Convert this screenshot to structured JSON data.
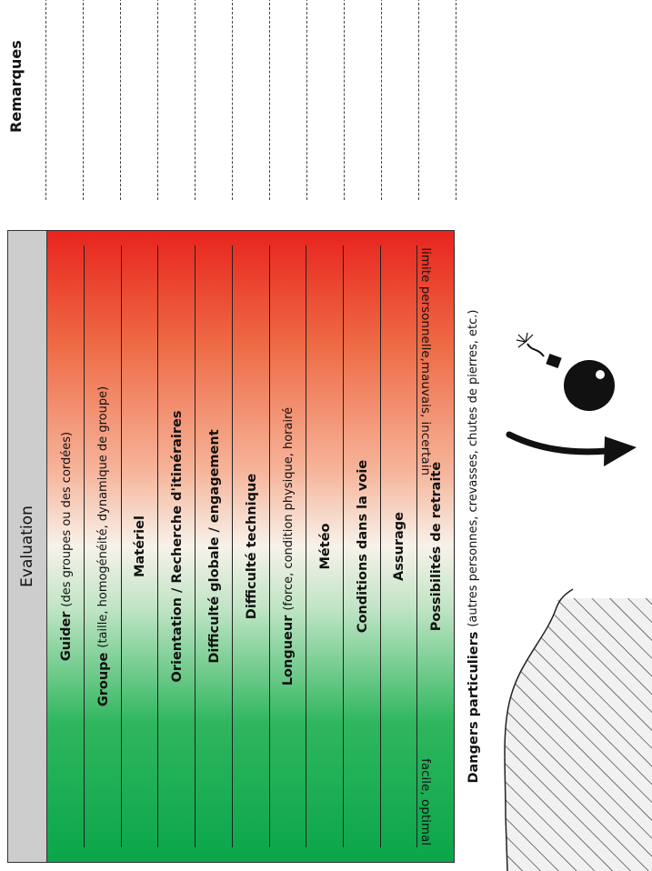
{
  "evaluation": {
    "title": "Evaluation",
    "rows": [
      {
        "label": "Guider",
        "desc": "(des groupes ou des cordées)"
      },
      {
        "label": "Groupe",
        "desc": "(taille, homogénéité, dynamique de groupe)"
      },
      {
        "label": "Matériel",
        "desc": ""
      },
      {
        "label": "Orientation / Recherche d'itinéraires",
        "desc": ""
      },
      {
        "label": "Difficulté globale / engagement",
        "desc": ""
      },
      {
        "label": "Difficulté technique",
        "desc": ""
      },
      {
        "label": "Longueur",
        "desc": "(force, condition physique, horairé"
      },
      {
        "label": "Météo",
        "desc": ""
      },
      {
        "label": "Conditions dans la voie",
        "desc": ""
      },
      {
        "label": "Assurage",
        "desc": ""
      },
      {
        "label": "Possibilités de retraite",
        "desc": ""
      },
      {
        "label": "Dangers particuliers",
        "desc": "(autres personnes, crevasses, chutes de pierres, etc.)"
      }
    ],
    "scale_low": "facile, optimal",
    "scale_high": "limite personnelle,mauvais, incertain",
    "gradient_colors": {
      "good": "#0aa64a",
      "neutral": "#f7f2ea",
      "bad": "#e8241e"
    }
  },
  "remarks": {
    "title": "Remarques"
  },
  "illustration": {
    "icons": [
      "bomb-icon",
      "curved-arrow-icon",
      "cliff-edge-icon"
    ]
  }
}
